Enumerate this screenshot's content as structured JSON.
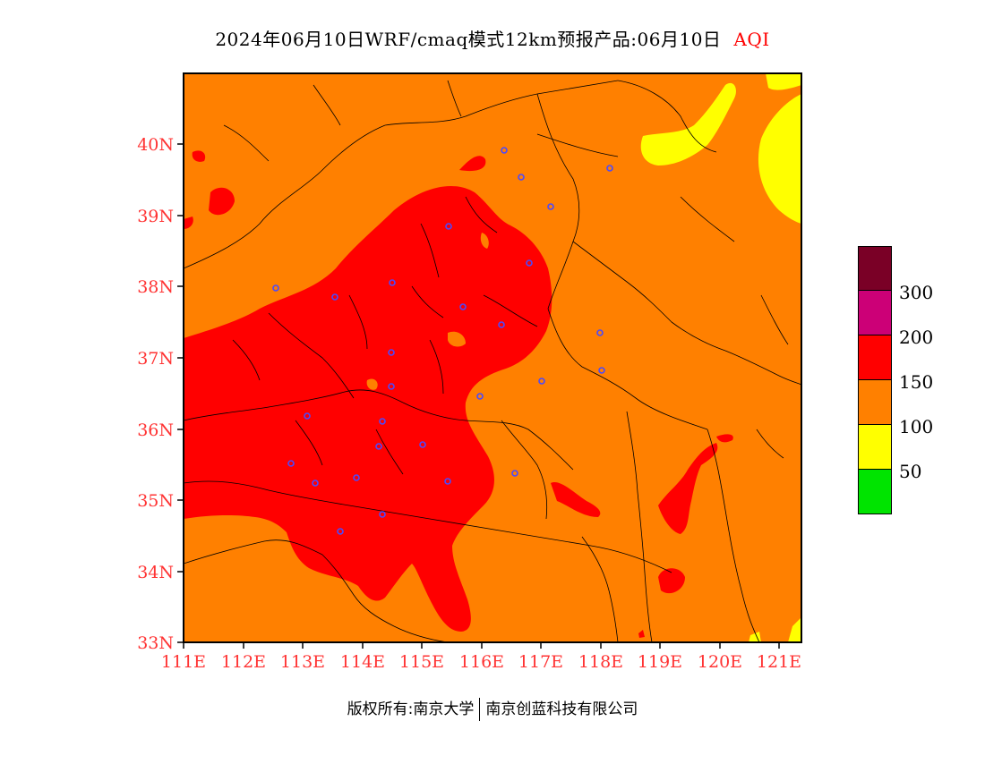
{
  "title": {
    "main": "2024年06月10日WRF/cmaq模式12km预报产品:06月10日",
    "aqi": "AQI"
  },
  "footer": {
    "left": "版权所有:南京大学",
    "right": "南京创蓝科技有限公司"
  },
  "map": {
    "lat_labels": [
      "40N",
      "39N",
      "38N",
      "37N",
      "36N",
      "35N",
      "34N",
      "33N"
    ],
    "lon_labels": [
      "111E",
      "112E",
      "113E",
      "114E",
      "115E",
      "116E",
      "117E",
      "118E",
      "119E",
      "120E",
      "121E"
    ],
    "axis_label_color": "#ff3333",
    "background_category_color": "#ff8000",
    "station_marker_color": "#4a4aff"
  },
  "legend": {
    "levels": [
      {
        "color": "#7a0026"
      },
      {
        "color": "#cc0077",
        "label": "300"
      },
      {
        "color": "#ff0000",
        "label": "200"
      },
      {
        "color": "#ff8000",
        "label": "150"
      },
      {
        "color": "#ffff00",
        "label": "100"
      },
      {
        "color": "#00e400",
        "label": "50"
      }
    ]
  }
}
